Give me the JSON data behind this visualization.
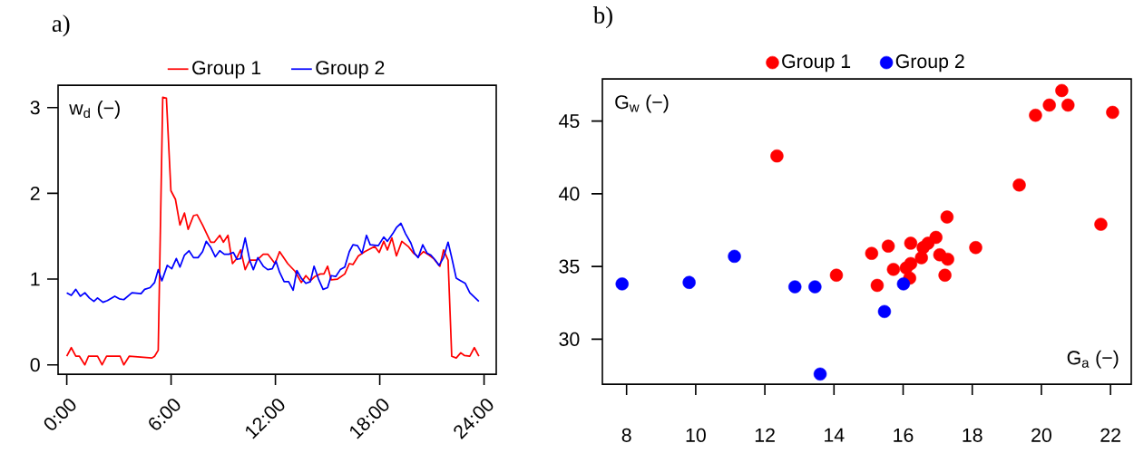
{
  "chart_data": [
    {
      "type": "line",
      "title": "a)",
      "ylabel": "w$_{d}$  (−)",
      "legend": "top",
      "marker": "none",
      "line_style": "solid",
      "xlim": [
        -0.5,
        24.7
      ],
      "ylim": [
        -0.11,
        3.26
      ],
      "xticks": [
        {
          "value": 0,
          "label": "0:00"
        },
        {
          "value": 6,
          "label": "6:00"
        },
        {
          "value": 12,
          "label": "12:00"
        },
        {
          "value": 18,
          "label": "18:00"
        },
        {
          "value": 24,
          "label": "24:00"
        }
      ],
      "yticks": [
        0,
        1,
        2,
        3
      ],
      "series": [
        {
          "name": "Group 1",
          "color": "#ff0000",
          "x": [
            0,
            0.26,
            0.52,
            0.73,
            1.04,
            1.25,
            1.77,
            2.03,
            2.29,
            3.07,
            3.28,
            3.59,
            4.9,
            5.05,
            5.26,
            5.52,
            5.73,
            5.99,
            6.25,
            6.51,
            6.77,
            6.98,
            7.29,
            7.5,
            7.81,
            8.28,
            8.49,
            8.8,
            9.01,
            9.27,
            9.53,
            9.74,
            10.0,
            10.26,
            10.52,
            10.94,
            11.3,
            11.56,
            11.98,
            12.24,
            12.71,
            13.13,
            13.49,
            13.75,
            14.01,
            14.27,
            14.58,
            14.79,
            15.0,
            15.21,
            15.57,
            15.99,
            16.25,
            16.46,
            16.77,
            17.14,
            17.71,
            17.97,
            18.23,
            18.44,
            18.7,
            18.96,
            19.27,
            19.64,
            19.95,
            20.21,
            20.52,
            20.83,
            21.09,
            21.46,
            21.67,
            21.93,
            22.14,
            22.4,
            22.66,
            22.86,
            23.18,
            23.44,
            23.7
          ],
          "values": [
            0.1,
            0.2,
            0.1,
            0.1,
            0.0,
            0.1,
            0.1,
            0.0,
            0.1,
            0.1,
            0.0,
            0.1,
            0.08,
            0.1,
            0.17,
            3.12,
            3.11,
            2.03,
            1.93,
            1.63,
            1.77,
            1.58,
            1.74,
            1.75,
            1.63,
            1.43,
            1.43,
            1.51,
            1.43,
            1.51,
            1.18,
            1.23,
            1.34,
            1.11,
            1.22,
            1.22,
            1.29,
            1.29,
            1.18,
            1.32,
            1.18,
            1.09,
            0.96,
            1.04,
            0.98,
            1.03,
            1.06,
            1.06,
            1.15,
            0.99,
            1.0,
            1.06,
            1.18,
            1.17,
            1.27,
            1.32,
            1.38,
            1.31,
            1.44,
            1.34,
            1.48,
            1.27,
            1.44,
            1.38,
            1.3,
            1.26,
            1.32,
            1.28,
            1.24,
            1.15,
            1.34,
            1.22,
            0.1,
            0.08,
            0.14,
            0.11,
            0.1,
            0.2,
            0.1
          ]
        },
        {
          "name": "Group 2",
          "color": "#0000ff",
          "x": [
            0,
            0.26,
            0.52,
            0.78,
            1.04,
            1.3,
            1.56,
            1.77,
            2.08,
            2.34,
            2.76,
            3.02,
            3.28,
            3.75,
            4.27,
            4.48,
            4.79,
            5.05,
            5.26,
            5.47,
            5.78,
            6.04,
            6.3,
            6.51,
            6.77,
            7.03,
            7.29,
            7.55,
            7.81,
            8.02,
            8.28,
            8.54,
            8.8,
            9.06,
            9.32,
            9.58,
            9.79,
            10.0,
            10.26,
            10.52,
            10.73,
            10.99,
            11.3,
            11.56,
            11.82,
            12.03,
            12.24,
            12.5,
            12.76,
            13.02,
            13.23,
            13.49,
            13.75,
            14.01,
            14.22,
            14.48,
            14.74,
            15.0,
            15.21,
            15.47,
            15.73,
            15.99,
            16.25,
            16.46,
            16.72,
            16.98,
            17.24,
            17.45,
            17.92,
            18.23,
            18.44,
            18.75,
            18.96,
            19.22,
            19.48,
            19.79,
            20.0,
            20.21,
            20.47,
            20.73,
            20.94,
            21.2,
            21.41,
            21.67,
            21.93,
            22.14,
            22.4,
            22.66,
            22.92,
            23.18,
            23.44,
            23.7
          ],
          "values": [
            0.84,
            0.81,
            0.88,
            0.8,
            0.84,
            0.78,
            0.74,
            0.78,
            0.73,
            0.75,
            0.8,
            0.77,
            0.76,
            0.84,
            0.83,
            0.88,
            0.9,
            0.96,
            1.11,
            0.98,
            1.16,
            1.12,
            1.24,
            1.14,
            1.28,
            1.33,
            1.25,
            1.25,
            1.32,
            1.44,
            1.37,
            1.26,
            1.33,
            1.29,
            1.29,
            1.31,
            1.23,
            1.24,
            1.48,
            1.22,
            1.11,
            1.25,
            1.15,
            1.11,
            1.12,
            1.21,
            1.08,
            0.97,
            0.97,
            0.87,
            1.1,
            1.01,
            0.95,
            0.97,
            1.15,
            1.0,
            0.88,
            0.9,
            1.04,
            1.03,
            1.11,
            1.14,
            1.32,
            1.4,
            1.39,
            1.3,
            1.51,
            1.4,
            1.39,
            1.49,
            1.44,
            1.53,
            1.6,
            1.65,
            1.53,
            1.42,
            1.3,
            1.25,
            1.4,
            1.3,
            1.28,
            1.22,
            1.16,
            1.25,
            1.43,
            1.25,
            1.01,
            0.98,
            0.95,
            0.84,
            0.79,
            0.74
          ]
        }
      ]
    },
    {
      "type": "scatter",
      "title": "b)",
      "xlabel": "G$_{a}$ (−)",
      "ylabel": "G$_{w}$ (−)",
      "legend": "top",
      "marker": "circle",
      "xlim": [
        7.3,
        22.6
      ],
      "ylim": [
        26.9,
        47.9
      ],
      "xticks": [
        8,
        10,
        12,
        14,
        16,
        18,
        20,
        22
      ],
      "yticks": [
        30,
        35,
        40,
        45
      ],
      "series": [
        {
          "name": "Group 1",
          "color": "#ff0000",
          "x": [
            12.35,
            14.07,
            15.09,
            15.25,
            15.57,
            15.72,
            16.09,
            16.19,
            16.22,
            16.22,
            16.53,
            16.58,
            16.72,
            16.95,
            17.06,
            17.29,
            17.21,
            17.27,
            18.1,
            19.36,
            19.83,
            20.23,
            20.59,
            20.77,
            22.06,
            21.72
          ],
          "values": [
            42.6,
            34.4,
            35.9,
            33.7,
            36.4,
            34.8,
            34.9,
            34.2,
            35.2,
            36.6,
            35.6,
            36.3,
            36.6,
            37.0,
            35.8,
            35.5,
            34.4,
            38.4,
            36.3,
            40.6,
            45.4,
            46.1,
            47.1,
            46.1,
            45.6,
            37.9
          ]
        },
        {
          "name": "Group 2",
          "color": "#0000ff",
          "x": [
            7.87,
            9.81,
            11.12,
            12.87,
            13.45,
            13.6,
            15.46,
            16.01
          ],
          "values": [
            33.8,
            33.9,
            35.7,
            33.6,
            33.6,
            27.6,
            31.9,
            33.8
          ]
        }
      ]
    }
  ]
}
